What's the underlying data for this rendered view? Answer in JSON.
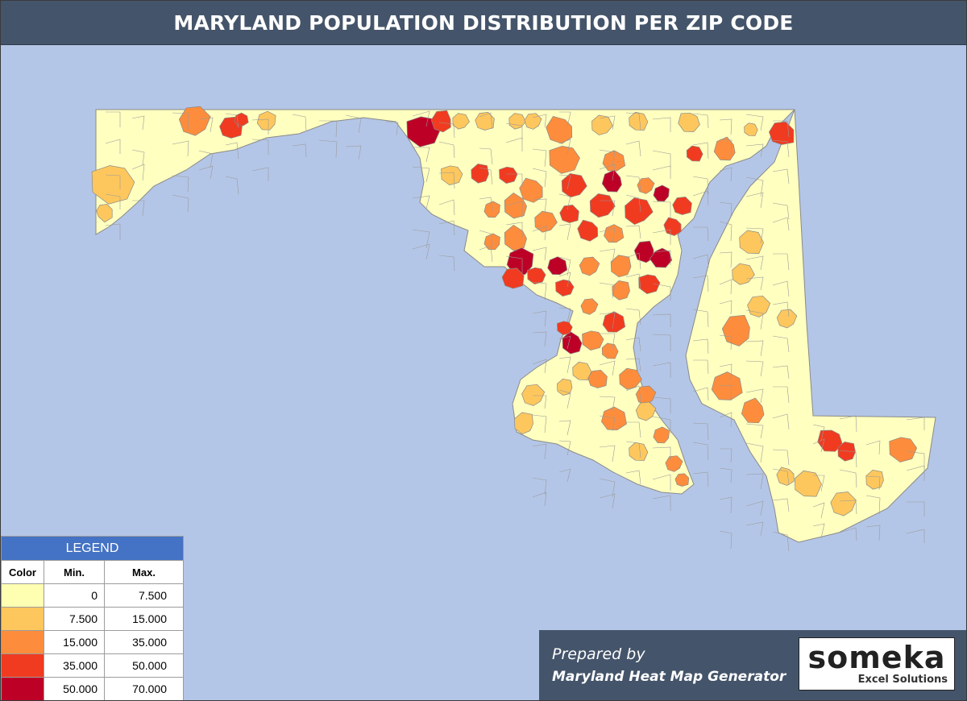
{
  "title": "MARYLAND POPULATION DISTRIBUTION PER ZIP CODE",
  "map": {
    "region": "Maryland",
    "unit": "ZIP code",
    "background_color": "#b4c6e7",
    "land_base_color": "#ffffc0",
    "border_color": "#8a8a8a"
  },
  "legend": {
    "header": "LEGEND",
    "columns": [
      "Color",
      "Min.",
      "Max."
    ],
    "rows": [
      {
        "color": "#ffffb2",
        "min": "0",
        "max": "7.500"
      },
      {
        "color": "#fec75d",
        "min": "7.500",
        "max": "15.000"
      },
      {
        "color": "#fd8d3c",
        "min": "15.000",
        "max": "35.000"
      },
      {
        "color": "#f03b20",
        "min": "35.000",
        "max": "50.000"
      },
      {
        "color": "#bd0026",
        "min": "50.000",
        "max": "70.000"
      }
    ]
  },
  "footer": {
    "prepared_by": "Prepared by",
    "generator": "Maryland Heat Map Generator",
    "logo_word": "someka",
    "logo_subtitle": "Excel Solutions",
    "panel_color": "#44546a"
  }
}
